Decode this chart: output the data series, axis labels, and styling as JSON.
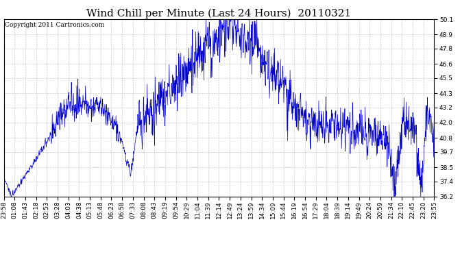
{
  "title": "Wind Chill per Minute (Last 24 Hours)  20110321",
  "copyright": "Copyright 2011 Cartronics.com",
  "line_color": "#0000CC",
  "bg_color": "#ffffff",
  "grid_color": "#bbbbbb",
  "yticks": [
    36.2,
    37.4,
    38.5,
    39.7,
    40.8,
    42.0,
    43.2,
    44.3,
    45.5,
    46.6,
    47.8,
    48.9,
    50.1
  ],
  "ymin": 36.2,
  "ymax": 50.1,
  "xtick_labels": [
    "23:58",
    "01:08",
    "01:43",
    "02:18",
    "02:53",
    "03:28",
    "04:03",
    "04:38",
    "05:13",
    "05:48",
    "06:23",
    "06:58",
    "07:33",
    "08:08",
    "08:43",
    "09:19",
    "09:54",
    "10:29",
    "11:04",
    "11:39",
    "12:14",
    "12:49",
    "13:24",
    "13:59",
    "14:34",
    "15:09",
    "15:44",
    "16:19",
    "16:54",
    "17:29",
    "18:04",
    "18:39",
    "19:14",
    "19:49",
    "20:24",
    "20:59",
    "21:34",
    "22:10",
    "22:45",
    "23:20",
    "23:55"
  ],
  "title_fontsize": 11,
  "tick_fontsize": 6.5,
  "copyright_fontsize": 6.5
}
